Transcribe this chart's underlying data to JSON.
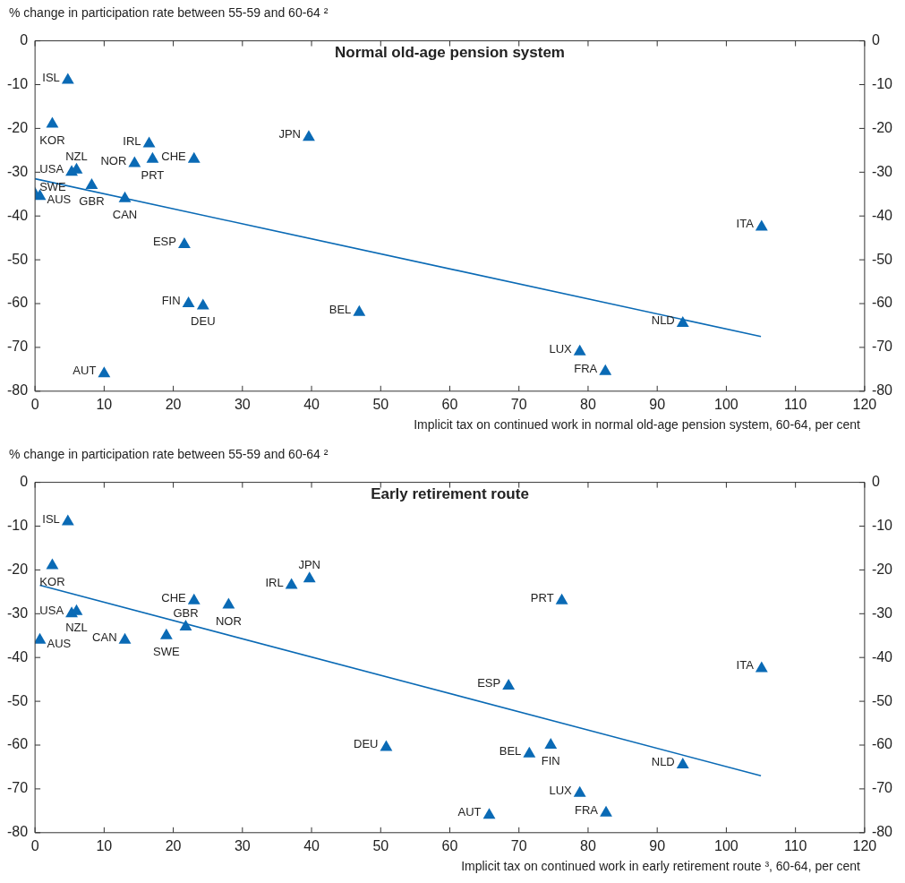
{
  "chart_data": [
    {
      "type": "scatter",
      "title": "Normal old-age pension system",
      "xlabel": "Implicit tax on continued work in normal old-age pension system, 60-64, per cent",
      "ylabel": "% change in participation rate between 55-59 and 60-64 ²",
      "xlim": [
        0,
        120
      ],
      "xticks": [
        0,
        10,
        20,
        30,
        40,
        50,
        60,
        70,
        80,
        90,
        100,
        110,
        120
      ],
      "ylim": [
        -80,
        0
      ],
      "yticks": [
        -80,
        -70,
        -60,
        -50,
        -40,
        -30,
        -20,
        -10,
        0
      ],
      "y2lim": [
        -80,
        0
      ],
      "y2ticks": [
        -80,
        -70,
        -60,
        -50,
        -40,
        -30,
        -20,
        -10,
        0
      ],
      "marker": "triangle",
      "legend": false,
      "grid": false,
      "series": [
        {
          "color": "#0a6ab5",
          "x": [
            4.75,
            2.5,
            16.5,
            39.6,
            17,
            14.4,
            23,
            6,
            5.3,
            8.2,
            0.7,
            0,
            13,
            21.6,
            22.2,
            24.3,
            10,
            46.9,
            78.8,
            82.5,
            93.7,
            105.1
          ],
          "values": [
            -9,
            -19,
            -23.5,
            -22,
            -27,
            -28,
            -27,
            -29.5,
            -30,
            -33,
            -35.5,
            -35,
            -36,
            -46.5,
            -60,
            -60.5,
            -76,
            -62,
            -71,
            -75.5,
            -64.5,
            -42.5
          ]
        },
        {
          "type": "line",
          "color": "#0a6ab5",
          "marker": "none",
          "x": [
            0,
            105
          ],
          "values": [
            -31.5,
            -67.5
          ]
        }
      ],
      "annotations": [
        {
          "text": "ISL",
          "x": 4.75,
          "y": -9
        },
        {
          "text": "KOR",
          "x": 2.5,
          "y": -19
        },
        {
          "text": "IRL",
          "x": 16.5,
          "y": -23.5
        },
        {
          "text": "JPN",
          "x": 39.6,
          "y": -22
        },
        {
          "text": "PRT",
          "x": 17,
          "y": -27
        },
        {
          "text": "NOR",
          "x": 14.4,
          "y": -28
        },
        {
          "text": "CHE",
          "x": 23,
          "y": -27
        },
        {
          "text": "NZL",
          "x": 6,
          "y": -29.5
        },
        {
          "text": "USA",
          "x": 5.3,
          "y": -30
        },
        {
          "text": "GBR",
          "x": 8.2,
          "y": -33
        },
        {
          "text": "AUS",
          "x": 0.7,
          "y": -35.5
        },
        {
          "text": "SWE",
          "x": 0,
          "y": -35
        },
        {
          "text": "CAN",
          "x": 13,
          "y": -36
        },
        {
          "text": "ESP",
          "x": 21.6,
          "y": -46.5
        },
        {
          "text": "FIN",
          "x": 22.2,
          "y": -60
        },
        {
          "text": "DEU",
          "x": 24.3,
          "y": -60.5
        },
        {
          "text": "AUT",
          "x": 10,
          "y": -76
        },
        {
          "text": "BEL",
          "x": 46.9,
          "y": -62
        },
        {
          "text": "LUX",
          "x": 78.8,
          "y": -71
        },
        {
          "text": "FRA",
          "x": 82.5,
          "y": -75.5
        },
        {
          "text": "NLD",
          "x": 93.7,
          "y": -64.5
        },
        {
          "text": "ITA",
          "x": 105.1,
          "y": -42.5
        }
      ]
    },
    {
      "type": "scatter",
      "title": "Early retirement route",
      "xlabel": "Implicit tax on continued work in early retirement route ³, 60-64, per cent",
      "ylabel": "% change in participation rate between 55-59 and 60-64 ²",
      "xlim": [
        0,
        120
      ],
      "xticks": [
        0,
        10,
        20,
        30,
        40,
        50,
        60,
        70,
        80,
        90,
        100,
        110,
        120
      ],
      "ylim": [
        -80,
        0
      ],
      "yticks": [
        -80,
        -70,
        -60,
        -50,
        -40,
        -30,
        -20,
        -10,
        0
      ],
      "y2lim": [
        -80,
        0
      ],
      "y2ticks": [
        -80,
        -70,
        -60,
        -50,
        -40,
        -30,
        -20,
        -10,
        0
      ],
      "marker": "triangle",
      "legend": false,
      "grid": false,
      "series": [
        {
          "color": "#0a6ab5",
          "x": [
            4.75,
            2.5,
            5.3,
            6,
            0.7,
            13,
            19,
            21.8,
            23,
            28,
            37.1,
            39.7,
            76.2,
            68.5,
            50.8,
            71.5,
            74.6,
            78.8,
            82.6,
            65.7,
            93.7,
            105.1
          ],
          "values": [
            -9,
            -19,
            -30,
            -29.5,
            -36,
            -36,
            -35,
            -33,
            -27,
            -28,
            -23.5,
            -22,
            -27,
            -46.5,
            -60.5,
            -62,
            -60,
            -71,
            -75.5,
            -76,
            -64.5,
            -42.5
          ]
        },
        {
          "type": "line",
          "color": "#0a6ab5",
          "marker": "none",
          "x": [
            0.7,
            105
          ],
          "values": [
            -23.5,
            -67
          ]
        }
      ],
      "annotations": [
        {
          "text": "ISL",
          "x": 4.75,
          "y": -9
        },
        {
          "text": "KOR",
          "x": 2.5,
          "y": -19
        },
        {
          "text": "USA",
          "x": 5.3,
          "y": -30
        },
        {
          "text": "NZL",
          "x": 6,
          "y": -29.5
        },
        {
          "text": "AUS",
          "x": 0.7,
          "y": -36
        },
        {
          "text": "CAN",
          "x": 13,
          "y": -36
        },
        {
          "text": "SWE",
          "x": 19,
          "y": -35
        },
        {
          "text": "GBR",
          "x": 21.8,
          "y": -33
        },
        {
          "text": "CHE",
          "x": 23,
          "y": -27
        },
        {
          "text": "NOR",
          "x": 28,
          "y": -28
        },
        {
          "text": "IRL",
          "x": 37.1,
          "y": -23.5
        },
        {
          "text": "JPN",
          "x": 39.7,
          "y": -22
        },
        {
          "text": "PRT",
          "x": 76.2,
          "y": -27
        },
        {
          "text": "ESP",
          "x": 68.5,
          "y": -46.5
        },
        {
          "text": "DEU",
          "x": 50.8,
          "y": -60.5
        },
        {
          "text": "BEL",
          "x": 71.5,
          "y": -62
        },
        {
          "text": "FIN",
          "x": 74.6,
          "y": -60
        },
        {
          "text": "LUX",
          "x": 78.8,
          "y": -71
        },
        {
          "text": "FRA",
          "x": 82.6,
          "y": -75.5
        },
        {
          "text": "AUT",
          "x": 65.7,
          "y": -76
        },
        {
          "text": "NLD",
          "x": 93.7,
          "y": -64.5
        },
        {
          "text": "ITA",
          "x": 105.1,
          "y": -42.5
        }
      ]
    }
  ]
}
